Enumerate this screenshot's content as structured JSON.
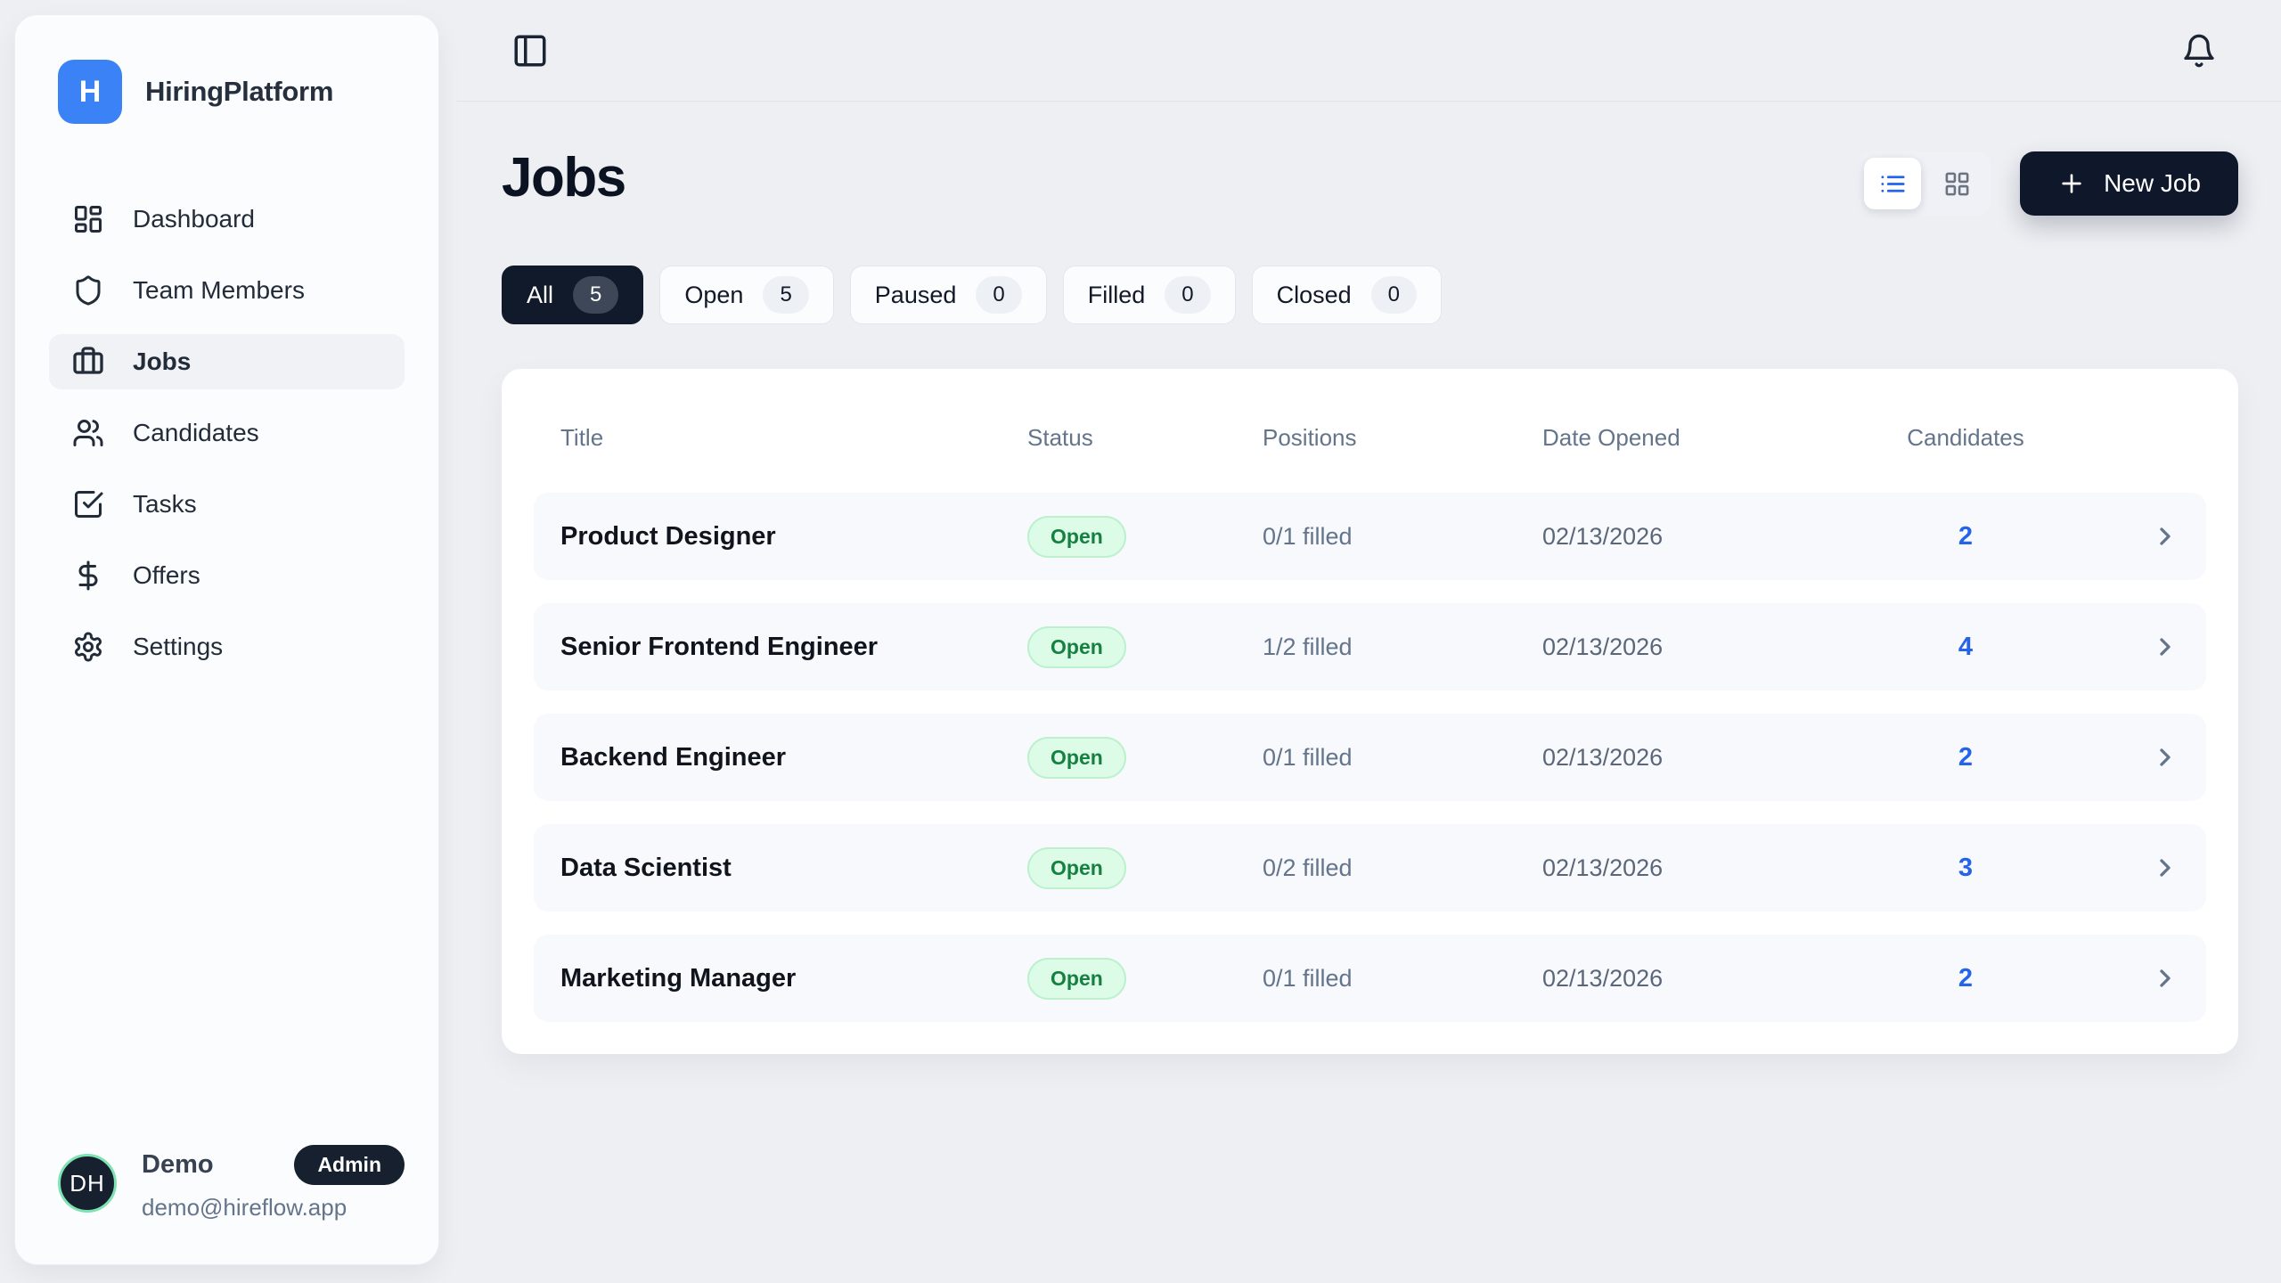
{
  "brand": {
    "initial": "H",
    "name": "HiringPlatform"
  },
  "sidebar": {
    "items": [
      {
        "label": "Dashboard",
        "icon": "dashboard-icon",
        "active": false
      },
      {
        "label": "Team Members",
        "icon": "shield-icon",
        "active": false
      },
      {
        "label": "Jobs",
        "icon": "briefcase-icon",
        "active": true
      },
      {
        "label": "Candidates",
        "icon": "users-icon",
        "active": false
      },
      {
        "label": "Tasks",
        "icon": "task-check-icon",
        "active": false
      },
      {
        "label": "Offers",
        "icon": "dollar-icon",
        "active": false
      },
      {
        "label": "Settings",
        "icon": "gear-icon",
        "active": false
      }
    ]
  },
  "user": {
    "initials": "DH",
    "name": "Demo",
    "role": "Admin",
    "email": "demo@hireflow.app"
  },
  "topbar": {
    "left_icon": "panel-left-icon",
    "right_icon": "bell-icon"
  },
  "page": {
    "title": "Jobs"
  },
  "view_toggle": {
    "options": [
      {
        "icon": "list-icon",
        "active": true
      },
      {
        "icon": "grid-icon",
        "active": false
      }
    ]
  },
  "new_job": {
    "label": "New Job",
    "icon": "plus-icon"
  },
  "filters": [
    {
      "label": "All",
      "count": "5",
      "active": true
    },
    {
      "label": "Open",
      "count": "5",
      "active": false
    },
    {
      "label": "Paused",
      "count": "0",
      "active": false
    },
    {
      "label": "Filled",
      "count": "0",
      "active": false
    },
    {
      "label": "Closed",
      "count": "0",
      "active": false
    }
  ],
  "table": {
    "columns": [
      "Title",
      "Status",
      "Positions",
      "Date Opened",
      "Candidates"
    ],
    "rows": [
      {
        "title": "Product Designer",
        "status": "Open",
        "positions": "0/1 filled",
        "date": "02/13/2026",
        "candidates": "2"
      },
      {
        "title": "Senior Frontend Engineer",
        "status": "Open",
        "positions": "1/2 filled",
        "date": "02/13/2026",
        "candidates": "4"
      },
      {
        "title": "Backend Engineer",
        "status": "Open",
        "positions": "0/1 filled",
        "date": "02/13/2026",
        "candidates": "2"
      },
      {
        "title": "Data Scientist",
        "status": "Open",
        "positions": "0/2 filled",
        "date": "02/13/2026",
        "candidates": "3"
      },
      {
        "title": "Marketing Manager",
        "status": "Open",
        "positions": "0/1 filled",
        "date": "02/13/2026",
        "candidates": "2"
      }
    ]
  },
  "colors": {
    "brand_blue": "#3b82f6",
    "link_blue": "#2563eb",
    "dark_navy": "#0f172a",
    "page_background": "#edeff3",
    "status_open_bg": "#dcfce7",
    "status_open_text": "#168040",
    "avatar_ring": "#7ce3b1"
  }
}
